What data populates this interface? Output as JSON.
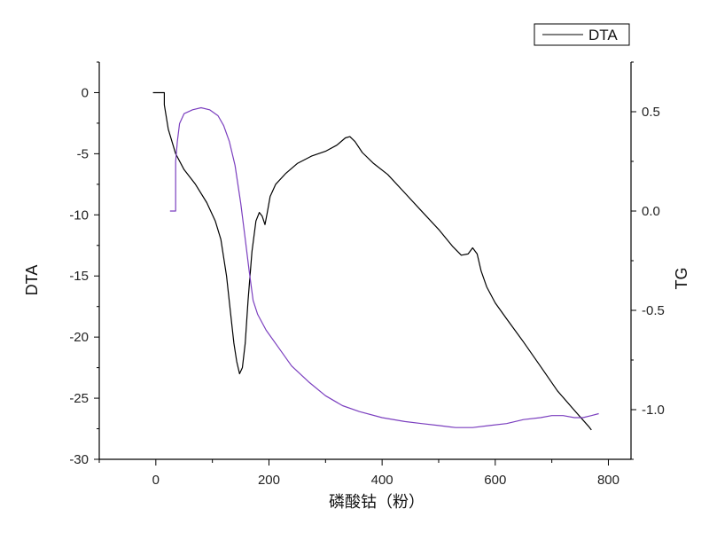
{
  "chart_data": {
    "type": "line",
    "xlabel": "磷酸钴（粉）",
    "ylabel_left": "DTA",
    "ylabel_right": "TG",
    "xlim": [
      -100,
      840
    ],
    "ylim_left": [
      -30,
      2.5
    ],
    "ylim_right": [
      -1.25,
      0.75
    ],
    "x_ticks": [
      0,
      200,
      400,
      600,
      800
    ],
    "y_ticks_left": [
      0,
      -5,
      -10,
      -15,
      -20,
      -25,
      -30
    ],
    "y_ticks_left_labels": [
      "0",
      "-5",
      "-10",
      "-15",
      "-20",
      "-25",
      "-30"
    ],
    "y_ticks_right": [
      0.5,
      0.0,
      -0.5,
      -1.0
    ],
    "y_ticks_right_labels": [
      "0.5",
      "0.0",
      "-0.5",
      "-1.0"
    ],
    "grid": false,
    "legend": {
      "position": "top-right",
      "entries": [
        "DTA"
      ]
    },
    "series": [
      {
        "name": "DTA",
        "axis": "left",
        "color": "#000000",
        "points": [
          [
            -5,
            0
          ],
          [
            15,
            0
          ],
          [
            15,
            -1
          ],
          [
            22,
            -3
          ],
          [
            35,
            -5
          ],
          [
            50,
            -6.3
          ],
          [
            70,
            -7.5
          ],
          [
            90,
            -9
          ],
          [
            105,
            -10.5
          ],
          [
            115,
            -12
          ],
          [
            125,
            -15
          ],
          [
            132,
            -18
          ],
          [
            138,
            -20.5
          ],
          [
            143,
            -22
          ],
          [
            148,
            -23
          ],
          [
            153,
            -22.5
          ],
          [
            158,
            -20.5
          ],
          [
            163,
            -17
          ],
          [
            170,
            -13
          ],
          [
            177,
            -10.5
          ],
          [
            183,
            -9.8
          ],
          [
            188,
            -10.1
          ],
          [
            193,
            -10.8
          ],
          [
            197,
            -9.8
          ],
          [
            202,
            -8.5
          ],
          [
            212,
            -7.5
          ],
          [
            230,
            -6.6
          ],
          [
            250,
            -5.8
          ],
          [
            275,
            -5.2
          ],
          [
            300,
            -4.8
          ],
          [
            320,
            -4.3
          ],
          [
            335,
            -3.7
          ],
          [
            343,
            -3.6
          ],
          [
            352,
            -4.0
          ],
          [
            365,
            -4.9
          ],
          [
            385,
            -5.8
          ],
          [
            410,
            -6.7
          ],
          [
            440,
            -8.2
          ],
          [
            470,
            -9.7
          ],
          [
            500,
            -11.2
          ],
          [
            525,
            -12.6
          ],
          [
            540,
            -13.3
          ],
          [
            552,
            -13.2
          ],
          [
            560,
            -12.7
          ],
          [
            568,
            -13.2
          ],
          [
            575,
            -14.6
          ],
          [
            585,
            -15.9
          ],
          [
            600,
            -17.2
          ],
          [
            620,
            -18.5
          ],
          [
            650,
            -20.4
          ],
          [
            680,
            -22.4
          ],
          [
            710,
            -24.4
          ],
          [
            740,
            -26
          ],
          [
            765,
            -27.3
          ],
          [
            770,
            -27.6
          ]
        ]
      },
      {
        "name": "",
        "axis": "right",
        "color": "#7b3fbf",
        "points": [
          [
            25,
            0
          ],
          [
            35,
            0
          ],
          [
            35,
            0.25
          ],
          [
            38,
            0.35
          ],
          [
            42,
            0.44
          ],
          [
            50,
            0.49
          ],
          [
            65,
            0.51
          ],
          [
            80,
            0.52
          ],
          [
            95,
            0.51
          ],
          [
            110,
            0.48
          ],
          [
            120,
            0.43
          ],
          [
            130,
            0.35
          ],
          [
            140,
            0.23
          ],
          [
            150,
            0.04
          ],
          [
            158,
            -0.14
          ],
          [
            165,
            -0.3
          ],
          [
            172,
            -0.45
          ],
          [
            180,
            -0.52
          ],
          [
            195,
            -0.6
          ],
          [
            215,
            -0.68
          ],
          [
            240,
            -0.78
          ],
          [
            270,
            -0.86
          ],
          [
            300,
            -0.93
          ],
          [
            330,
            -0.98
          ],
          [
            360,
            -1.01
          ],
          [
            400,
            -1.04
          ],
          [
            440,
            -1.06
          ],
          [
            470,
            -1.07
          ],
          [
            500,
            -1.08
          ],
          [
            530,
            -1.09
          ],
          [
            560,
            -1.09
          ],
          [
            590,
            -1.08
          ],
          [
            620,
            -1.07
          ],
          [
            650,
            -1.05
          ],
          [
            680,
            -1.04
          ],
          [
            700,
            -1.03
          ],
          [
            720,
            -1.03
          ],
          [
            740,
            -1.04
          ],
          [
            755,
            -1.04
          ],
          [
            770,
            -1.03
          ],
          [
            783,
            -1.02
          ]
        ]
      }
    ]
  }
}
